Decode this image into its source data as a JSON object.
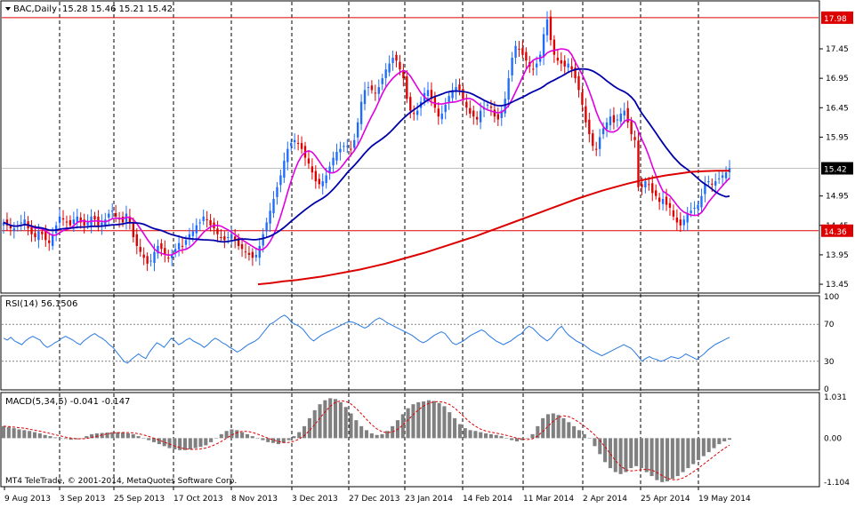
{
  "chart_data": [
    {
      "type": "candlestick",
      "panel": "main",
      "symbol_label": "BAC,Daily",
      "ohlc_label": "15.28 15.46 15.21 15.42",
      "y_range": [
        13.3,
        18.25
      ],
      "y_ticks": [
        "17.45",
        "16.95",
        "16.45",
        "15.95",
        "14.95",
        "14.45",
        "13.95",
        "13.45"
      ],
      "price_tags": [
        {
          "label": "17.98",
          "value": 17.98,
          "color": "#dd0000",
          "horizontal_line": true
        },
        {
          "label": "15.42",
          "value": 15.42,
          "color": "#000000",
          "horizontal_line": false
        },
        {
          "label": "14.36",
          "value": 14.36,
          "color": "#dd0000",
          "horizontal_line": true
        }
      ],
      "close_approx": [
        14.5,
        14.45,
        14.4,
        14.4,
        14.45,
        14.5,
        14.55,
        14.4,
        14.3,
        14.25,
        14.35,
        14.3,
        14.2,
        14.15,
        14.3,
        14.45,
        14.6,
        14.55,
        14.5,
        14.45,
        14.55,
        14.6,
        14.5,
        14.45,
        14.5,
        14.6,
        14.55,
        14.45,
        14.5,
        14.55,
        14.65,
        14.7,
        14.6,
        14.55,
        14.5,
        14.65,
        14.5,
        14.25,
        14.1,
        14.0,
        13.9,
        13.8,
        13.85,
        14.0,
        14.1,
        14.05,
        13.95,
        13.9,
        13.95,
        14.05,
        14.15,
        14.1,
        14.2,
        14.3,
        14.35,
        14.45,
        14.5,
        14.6,
        14.55,
        14.45,
        14.4,
        14.3,
        14.25,
        14.2,
        14.25,
        14.3,
        14.2,
        14.1,
        14.05,
        14.0,
        13.95,
        13.9,
        13.95,
        14.1,
        14.3,
        14.5,
        14.7,
        14.9,
        15.1,
        15.3,
        15.55,
        15.75,
        15.85,
        15.9,
        15.85,
        15.75,
        15.6,
        15.5,
        15.35,
        15.2,
        15.15,
        15.2,
        15.3,
        15.45,
        15.6,
        15.7,
        15.75,
        15.8,
        15.8,
        15.75,
        15.9,
        16.2,
        16.55,
        16.75,
        16.8,
        16.75,
        16.7,
        16.8,
        16.95,
        17.1,
        17.2,
        17.3,
        17.25,
        17.1,
        16.95,
        16.6,
        16.4,
        16.35,
        16.4,
        16.55,
        16.7,
        16.75,
        16.6,
        16.45,
        16.3,
        16.35,
        16.5,
        16.65,
        16.75,
        16.8,
        16.75,
        16.6,
        16.45,
        16.35,
        16.3,
        16.25,
        16.4,
        16.45,
        16.5,
        16.45,
        16.3,
        16.25,
        16.4,
        16.6,
        16.95,
        17.3,
        17.5,
        17.45,
        17.35,
        17.25,
        17.15,
        17.1,
        17.2,
        17.35,
        17.7,
        17.95,
        17.6,
        17.35,
        17.25,
        17.2,
        17.15,
        17.2,
        17.1,
        16.95,
        16.75,
        16.5,
        16.2,
        16.0,
        15.8,
        15.75,
        15.95,
        16.1,
        16.2,
        16.3,
        16.2,
        16.25,
        16.35,
        16.4,
        16.2,
        16.0,
        15.9,
        15.1,
        15.1,
        15.2,
        15.15,
        15.0,
        14.95,
        14.85,
        14.9,
        14.8,
        14.75,
        14.6,
        14.5,
        14.45,
        14.55,
        14.65,
        14.7,
        14.75,
        14.8,
        14.95,
        15.15,
        15.2,
        15.15,
        15.2,
        15.25,
        15.3,
        15.35,
        15.42
      ],
      "series": [
        {
          "name": "",
          "color": "#e000e0",
          "kind": "short_ma"
        },
        {
          "name": "",
          "color": "#0000aa",
          "kind": "medium_ma"
        },
        {
          "name": "",
          "color": "#dd0000",
          "kind": "long_ma",
          "values_approx": [
            13.45,
            13.47,
            13.5,
            13.52,
            13.55,
            13.58,
            13.62,
            13.66,
            13.7,
            13.75,
            13.8,
            13.86,
            13.92,
            13.98,
            14.05,
            14.12,
            14.19,
            14.26,
            14.34,
            14.42,
            14.5,
            14.58,
            14.66,
            14.74,
            14.82,
            14.9,
            14.97,
            15.04,
            15.1,
            15.16,
            15.21,
            15.26,
            15.3,
            15.33,
            15.36,
            15.37,
            15.38,
            15.38
          ]
        }
      ]
    },
    {
      "type": "line",
      "panel": "rsi",
      "label": "RSI(14) 56.1506",
      "y_range": [
        0,
        100
      ],
      "y_ticks": [
        "100",
        "70",
        "30",
        "0"
      ],
      "levels": [
        70,
        30
      ],
      "color": "#2a7ae2",
      "values_approx": [
        55,
        53,
        56,
        52,
        50,
        48,
        52,
        55,
        57,
        55,
        53,
        48,
        45,
        47,
        50,
        52,
        55,
        57,
        55,
        53,
        50,
        48,
        52,
        55,
        58,
        60,
        57,
        55,
        52,
        48,
        45,
        40,
        35,
        30,
        28,
        32,
        35,
        38,
        35,
        33,
        40,
        45,
        50,
        48,
        45,
        50,
        55,
        52,
        48,
        50,
        53,
        55,
        52,
        50,
        48,
        45,
        48,
        52,
        55,
        53,
        50,
        48,
        45,
        43,
        40,
        42,
        45,
        48,
        50,
        52,
        55,
        60,
        65,
        70,
        72,
        75,
        78,
        80,
        77,
        72,
        70,
        68,
        65,
        60,
        55,
        52,
        55,
        58,
        60,
        62,
        64,
        66,
        68,
        70,
        72,
        73,
        72,
        70,
        68,
        66,
        68,
        72,
        75,
        77,
        75,
        72,
        70,
        68,
        66,
        64,
        62,
        60,
        58,
        55,
        52,
        50,
        52,
        55,
        58,
        60,
        62,
        60,
        55,
        50,
        48,
        50,
        52,
        55,
        58,
        60,
        62,
        64,
        62,
        58,
        55,
        52,
        50,
        48,
        50,
        52,
        55,
        58,
        60,
        65,
        68,
        66,
        62,
        58,
        55,
        52,
        55,
        60,
        65,
        68,
        62,
        58,
        55,
        52,
        50,
        48,
        45,
        42,
        40,
        38,
        36,
        38,
        40,
        42,
        44,
        46,
        48,
        46,
        44,
        40,
        35,
        30,
        33,
        35,
        33,
        32,
        30,
        31,
        33,
        35,
        34,
        33,
        35,
        38,
        36,
        34,
        32,
        35,
        38,
        42,
        45,
        48,
        50,
        52,
        54,
        56
      ]
    },
    {
      "type": "bar",
      "panel": "macd",
      "label": "MACD(5,34,5) -0.041 -0.147",
      "y_range": [
        -1.104,
        1.031
      ],
      "y_ticks": [
        "1.031",
        "0.00",
        "-1.104"
      ],
      "bar_color": "#808080",
      "signal_color": "#dd0000",
      "values_approx": [
        0.3,
        0.28,
        0.25,
        0.22,
        0.2,
        0.18,
        0.15,
        0.12,
        0.08,
        0.05,
        0.02,
        0.0,
        -0.02,
        -0.04,
        -0.03,
        0.0,
        0.05,
        0.1,
        0.12,
        0.13,
        0.14,
        0.15,
        0.15,
        0.14,
        0.12,
        0.1,
        0.05,
        0.0,
        -0.05,
        -0.1,
        -0.15,
        -0.2,
        -0.25,
        -0.28,
        -0.3,
        -0.3,
        -0.28,
        -0.25,
        -0.22,
        -0.18,
        -0.1,
        0.0,
        0.1,
        0.18,
        0.22,
        0.2,
        0.15,
        0.1,
        0.05,
        0.0,
        -0.05,
        -0.1,
        -0.12,
        -0.15,
        -0.12,
        -0.05,
        0.05,
        0.15,
        0.3,
        0.5,
        0.7,
        0.85,
        0.95,
        1.0,
        0.98,
        0.9,
        0.78,
        0.62,
        0.45,
        0.3,
        0.2,
        0.12,
        0.08,
        0.1,
        0.18,
        0.3,
        0.45,
        0.6,
        0.75,
        0.85,
        0.9,
        0.92,
        0.95,
        0.93,
        0.88,
        0.8,
        0.65,
        0.5,
        0.35,
        0.25,
        0.2,
        0.18,
        0.15,
        0.12,
        0.1,
        0.08,
        0.05,
        0.0,
        -0.05,
        -0.08,
        -0.05,
        0.0,
        0.1,
        0.3,
        0.5,
        0.6,
        0.62,
        0.58,
        0.5,
        0.4,
        0.3,
        0.2,
        0.1,
        0.0,
        -0.2,
        -0.4,
        -0.6,
        -0.75,
        -0.85,
        -0.9,
        -0.85,
        -0.75,
        -0.7,
        -0.75,
        -0.85,
        -0.95,
        -1.05,
        -1.1,
        -1.08,
        -1.02,
        -0.95,
        -0.85,
        -0.75,
        -0.65,
        -0.55,
        -0.45,
        -0.35,
        -0.25,
        -0.15,
        -0.08,
        -0.04
      ]
    }
  ],
  "x_axis": {
    "labels": [
      "9 Aug 2013",
      "3 Sep 2013",
      "25 Sep 2013",
      "17 Oct 2013",
      "8 Nov 2013",
      "3 Dec 2013",
      "27 Dec 2013",
      "23 Jan 2014",
      "14 Feb 2014",
      "11 Mar 2014",
      "2 Apr 2014",
      "25 Apr 2014",
      "19 May 2014"
    ]
  },
  "footer": {
    "copyright": "MT4 TeleTrade, © 2001-2014, MetaQuotes Software Corp."
  }
}
